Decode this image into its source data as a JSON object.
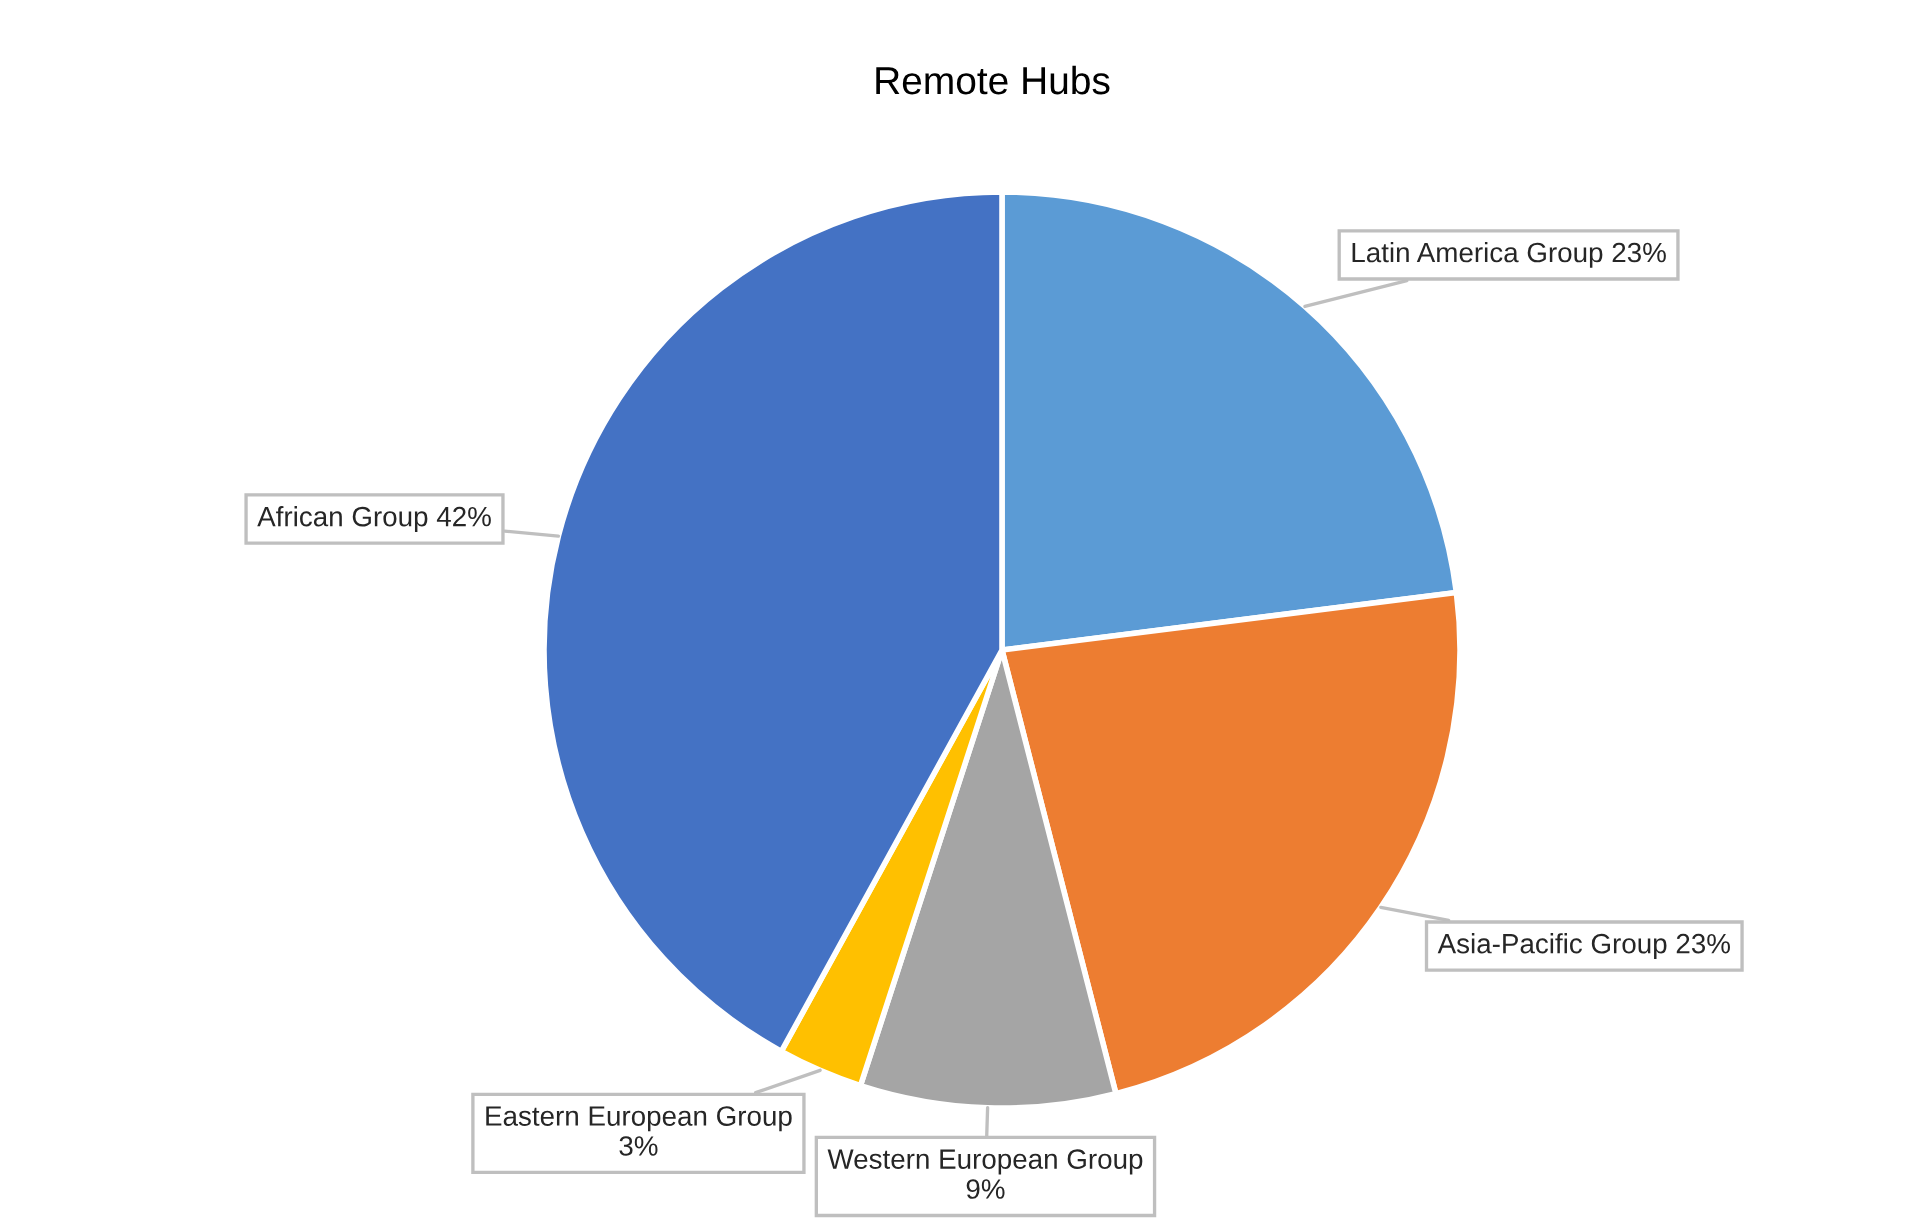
{
  "chart_data": {
    "type": "pie",
    "title": "Remote Hubs",
    "categories": [
      "Latin America Group",
      "Asia-Pacific Group",
      "Western European Group",
      "Eastern European Group",
      "African Group"
    ],
    "values": [
      23,
      23,
      9,
      3,
      42
    ],
    "value_labels": [
      "23%",
      "23%",
      "9%",
      "3%",
      "42%"
    ],
    "colors": [
      "#5b9bd5",
      "#ed7d31",
      "#a5a5a5",
      "#ffc000",
      "#4472c4"
    ]
  }
}
